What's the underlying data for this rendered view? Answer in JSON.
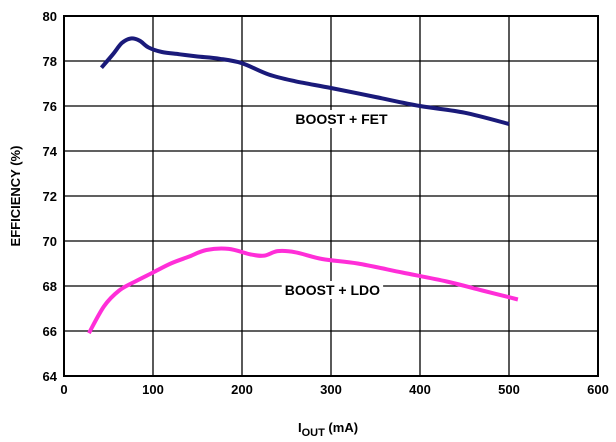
{
  "chart_data": {
    "type": "line",
    "title": "",
    "xlabel": {
      "main": "I",
      "sub": "OUT",
      "unit": " (mA)"
    },
    "ylabel": "EFFICIENCY (%)",
    "xlim": [
      0,
      600
    ],
    "ylim": [
      64,
      80
    ],
    "xticks": [
      0,
      100,
      200,
      300,
      400,
      500,
      600
    ],
    "yticks": [
      64,
      66,
      68,
      70,
      72,
      74,
      76,
      78,
      80
    ],
    "grid": true,
    "legend": "none",
    "series": [
      {
        "name": "BOOST + FET",
        "color": "#1a1a7a",
        "label_at": [
          260,
          75.2
        ],
        "x": [
          42,
          55,
          65,
          75,
          85,
          95,
          110,
          130,
          150,
          175,
          200,
          230,
          260,
          300,
          350,
          400,
          450,
          500
        ],
        "y": [
          77.7,
          78.3,
          78.8,
          79.0,
          78.9,
          78.6,
          78.4,
          78.3,
          78.2,
          78.1,
          77.9,
          77.4,
          77.1,
          76.8,
          76.4,
          76.0,
          75.7,
          75.2
        ]
      },
      {
        "name": "BOOST + LDO",
        "color": "#ff2ed8",
        "label_at": [
          248,
          67.6
        ],
        "x": [
          28,
          45,
          62,
          80,
          100,
          120,
          140,
          160,
          185,
          210,
          225,
          240,
          260,
          290,
          330,
          380,
          430,
          470,
          510
        ],
        "y": [
          65.9,
          67.1,
          67.8,
          68.2,
          68.6,
          69.0,
          69.3,
          69.6,
          69.65,
          69.4,
          69.35,
          69.55,
          69.5,
          69.2,
          69.0,
          68.6,
          68.2,
          67.8,
          67.4
        ]
      }
    ]
  }
}
